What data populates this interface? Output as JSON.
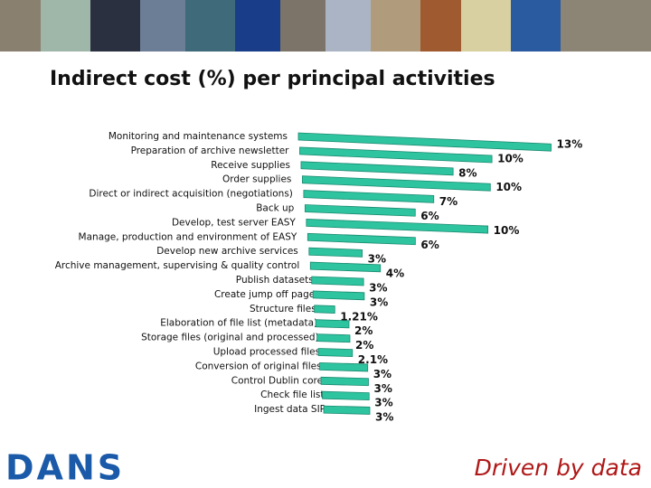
{
  "chart_data": {
    "type": "bar",
    "orientation": "horizontal",
    "title": "Indirect cost (%) per principal activities",
    "categories": [
      "Monitoring and maintenance systems",
      "Preparation of archive newsletter",
      "Receive supplies",
      "Order supplies",
      "Direct or indirect acquisition (negotiations)",
      "Back up",
      "Develop, test server EASY",
      "Manage, production and environment of EASY",
      "Develop new archive services",
      "Archive management, supervising & quality control",
      "Publish datasets",
      "Create jump off page",
      "Structure files",
      "Elaboration of file list (metadata)",
      "Storage files (original and processed)",
      "Upload processed files",
      "Conversion of original files",
      "Control Dublin core",
      "Check file list",
      "Ingest data SIP"
    ],
    "values": [
      13,
      10,
      8,
      10,
      7,
      6,
      10,
      6,
      3,
      4,
      3,
      3,
      1.21,
      2,
      2,
      2.1,
      3,
      3,
      3,
      3
    ],
    "value_labels": [
      "13%",
      "10%",
      "8%",
      "10%",
      "7%",
      "6%",
      "10%",
      "6%",
      "3%",
      "4%",
      "3%",
      "3%",
      "1.21%",
      "2%",
      "2%",
      "2.1%",
      "3%",
      "3%",
      "3%",
      "3%"
    ],
    "color": "#2ec4a0"
  },
  "footer": {
    "logo": "DANS",
    "tagline": "Driven by data"
  }
}
